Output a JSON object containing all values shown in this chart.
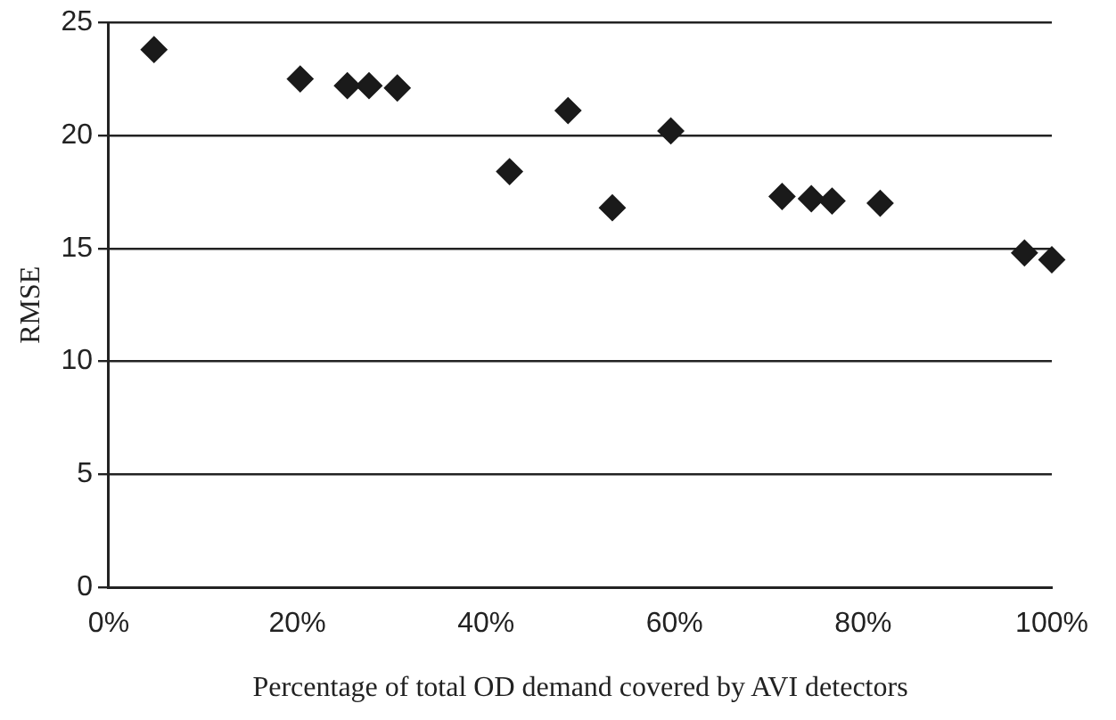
{
  "chart_data": {
    "type": "scatter",
    "xlabel": "Percentage of total OD demand covered by AVI detectors",
    "ylabel": "RMSE",
    "series": [
      {
        "color": "#1a1a1a",
        "x": [
          4.8,
          20.3,
          25.3,
          27.6,
          30.6,
          42.5,
          48.7,
          53.4,
          59.6,
          71.4,
          74.5,
          76.7,
          81.8,
          97.1,
          100
        ],
        "values": [
          23.8,
          22.5,
          22.2,
          22.2,
          22.1,
          18.4,
          21.1,
          16.8,
          20.2,
          17.3,
          17.2,
          17.1,
          17.0,
          14.8,
          14.5
        ]
      }
    ],
    "xlim": [
      0,
      100
    ],
    "xticks": [
      {
        "value": 0,
        "label": "0%"
      },
      {
        "value": 20,
        "label": "20%"
      },
      {
        "value": 40,
        "label": "40%"
      },
      {
        "value": 60,
        "label": "60%"
      },
      {
        "value": 80,
        "label": "80%"
      },
      {
        "value": 100,
        "label": "100%"
      }
    ],
    "ylim": [
      0,
      25
    ],
    "yticks": [
      0,
      5,
      10,
      15,
      20,
      25
    ],
    "grid": "y",
    "legend": false,
    "marker": "diamond"
  }
}
